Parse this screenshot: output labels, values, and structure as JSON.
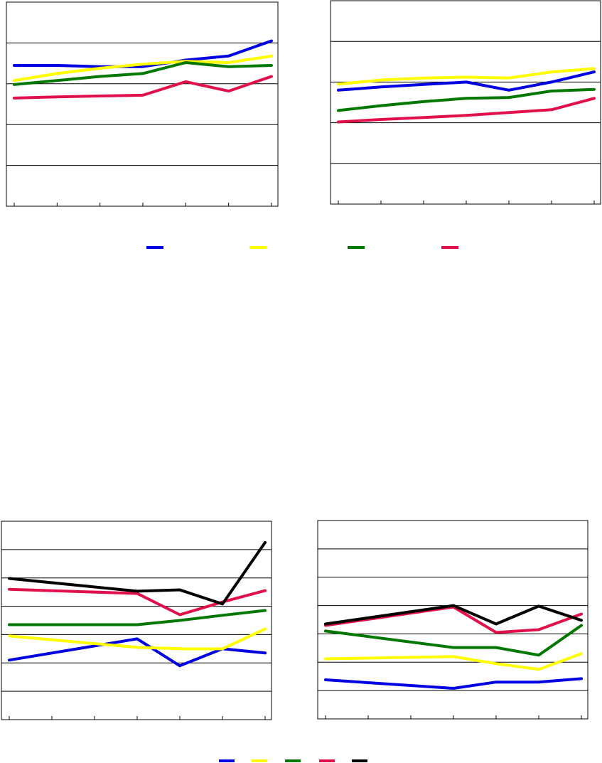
{
  "chart_data": [
    {
      "type": "line",
      "x": [
        1,
        2,
        3,
        4,
        5,
        6,
        7
      ],
      "ylim": [
        0,
        5
      ],
      "yticks": [
        1,
        2,
        3,
        4
      ],
      "grid": true,
      "legend": "bottom-center",
      "series": [
        {
          "color": "#0000e0",
          "x": [
            1,
            2,
            3,
            4,
            5,
            6,
            7
          ],
          "values": [
            3.45,
            3.45,
            3.42,
            3.42,
            3.58,
            3.68,
            4.05
          ]
        },
        {
          "color": "#ffff00",
          "x": [
            1,
            2,
            3,
            4,
            5,
            6,
            7
          ],
          "values": [
            3.08,
            3.25,
            3.38,
            3.48,
            3.55,
            3.52,
            3.68
          ]
        },
        {
          "color": "#007800",
          "x": [
            1,
            2,
            3,
            4,
            5,
            6,
            7
          ],
          "values": [
            2.98,
            3.08,
            3.18,
            3.25,
            3.52,
            3.42,
            3.45
          ]
        },
        {
          "color": "#e0104a",
          "x": [
            1,
            2,
            3,
            4,
            5,
            6,
            7
          ],
          "values": [
            2.65,
            2.68,
            2.7,
            2.72,
            3.05,
            2.82,
            3.18
          ]
        }
      ]
    },
    {
      "type": "line",
      "x": [
        1,
        2,
        3,
        4,
        5,
        6,
        7
      ],
      "ylim": [
        0,
        5
      ],
      "yticks": [
        1,
        2,
        3,
        4
      ],
      "grid": true,
      "legend": "bottom-center",
      "series": [
        {
          "color": "#0000e0",
          "x": [
            1,
            2,
            3,
            4,
            5,
            6,
            7
          ],
          "values": [
            2.8,
            2.88,
            2.94,
            3.0,
            2.8,
            3.0,
            3.25
          ]
        },
        {
          "color": "#ffff00",
          "x": [
            1,
            2,
            3,
            4,
            5,
            6,
            7
          ],
          "values": [
            2.95,
            3.05,
            3.1,
            3.12,
            3.1,
            3.25,
            3.33
          ]
        },
        {
          "color": "#007800",
          "x": [
            1,
            2,
            3,
            4,
            5,
            6,
            7
          ],
          "values": [
            2.3,
            2.42,
            2.52,
            2.6,
            2.62,
            2.78,
            2.82
          ]
        },
        {
          "color": "#e0104a",
          "x": [
            1,
            2,
            3,
            4,
            5,
            6,
            7
          ],
          "values": [
            2.02,
            2.08,
            2.13,
            2.18,
            2.25,
            2.32,
            2.6
          ]
        }
      ]
    },
    {
      "type": "line",
      "x": [
        1,
        2,
        3,
        4,
        5,
        6,
        7
      ],
      "ylim": [
        0,
        7
      ],
      "yticks": [
        1,
        2,
        3,
        4,
        5,
        6
      ],
      "grid": true,
      "legend": "bottom-center",
      "series": [
        {
          "color": "#0000e0",
          "x": [
            1,
            4,
            5,
            6,
            7
          ],
          "values": [
            2.1,
            2.85,
            1.9,
            2.5,
            2.35
          ]
        },
        {
          "color": "#ffff00",
          "x": [
            1,
            4,
            5,
            6,
            7
          ],
          "values": [
            2.95,
            2.55,
            2.5,
            2.5,
            3.2
          ]
        },
        {
          "color": "#007800",
          "x": [
            1,
            4,
            5,
            6,
            7
          ],
          "values": [
            3.35,
            3.35,
            3.5,
            3.68,
            3.85
          ]
        },
        {
          "color": "#e0104a",
          "x": [
            1,
            4,
            5,
            6,
            7
          ],
          "values": [
            4.6,
            4.45,
            3.7,
            4.15,
            4.55
          ]
        },
        {
          "color": "#000000",
          "x": [
            1,
            4,
            5,
            6,
            7
          ],
          "values": [
            4.98,
            4.53,
            4.58,
            4.08,
            6.25
          ]
        }
      ]
    },
    {
      "type": "line",
      "x": [
        1,
        2,
        3,
        4,
        5,
        6,
        7
      ],
      "ylim": [
        0,
        7
      ],
      "yticks": [
        1,
        2,
        3,
        4,
        5,
        6
      ],
      "grid": true,
      "legend": "bottom-center",
      "series": [
        {
          "color": "#0000e0",
          "x": [
            1,
            4,
            5,
            6,
            7
          ],
          "values": [
            1.38,
            1.08,
            1.3,
            1.3,
            1.42
          ]
        },
        {
          "color": "#ffff00",
          "x": [
            1,
            4,
            5,
            6,
            7
          ],
          "values": [
            2.12,
            2.2,
            1.95,
            1.75,
            2.3
          ]
        },
        {
          "color": "#007800",
          "x": [
            1,
            4,
            5,
            6,
            7
          ],
          "values": [
            3.1,
            2.52,
            2.52,
            2.25,
            3.3
          ]
        },
        {
          "color": "#e0104a",
          "x": [
            1,
            4,
            5,
            6,
            7
          ],
          "values": [
            3.3,
            3.95,
            3.05,
            3.15,
            3.7
          ]
        },
        {
          "color": "#000000",
          "x": [
            1,
            4,
            5,
            6,
            7
          ],
          "values": [
            3.35,
            4.0,
            3.35,
            3.98,
            3.48
          ]
        }
      ]
    }
  ]
}
